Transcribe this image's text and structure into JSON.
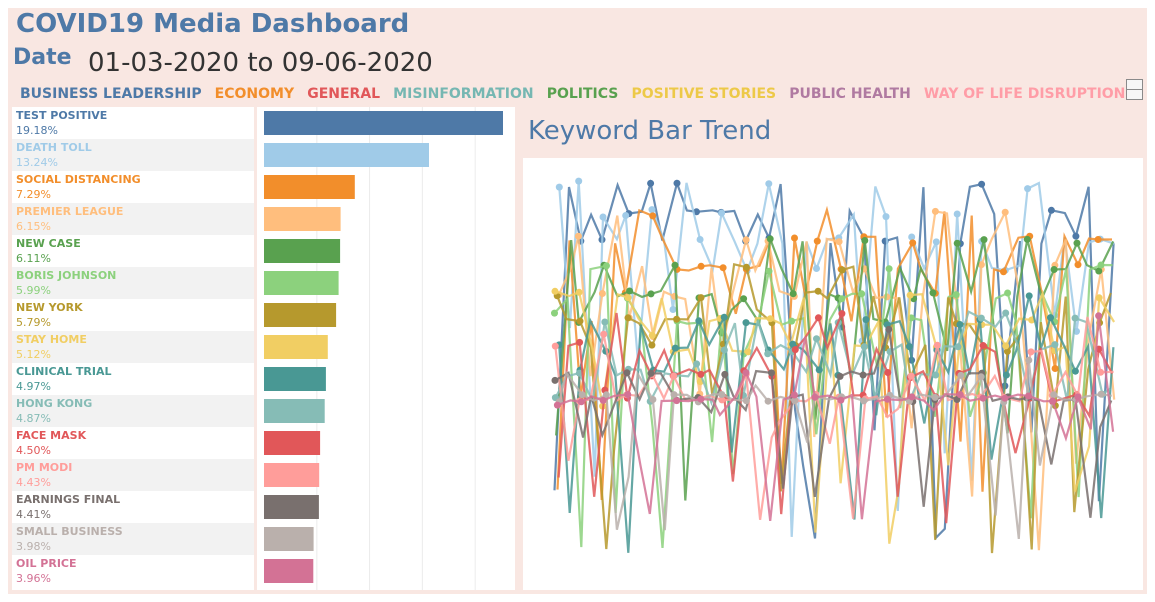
{
  "header": {
    "title": "COVID19 Media Dashboard",
    "date_label": "Date",
    "date_range": "01-03-2020 to 09-06-2020"
  },
  "legend": [
    {
      "label": "BUSINESS LEADERSHIP",
      "color": "#4e79a7"
    },
    {
      "label": "ECONOMY",
      "color": "#f28e2b"
    },
    {
      "label": "GENERAL",
      "color": "#e15759"
    },
    {
      "label": "MISINFORMATION",
      "color": "#76b7b2"
    },
    {
      "label": "POLITICS",
      "color": "#59a14f"
    },
    {
      "label": "POSITIVE STORIES",
      "color": "#edc948"
    },
    {
      "label": "PUBLIC HEALTH",
      "color": "#b07aa1"
    },
    {
      "label": "WAY OF LIFE DISRUPTION",
      "color": "#ff9da7"
    }
  ],
  "trend": {
    "title": "Keyword Bar Trend"
  },
  "chart_data": {
    "type": "bar",
    "orientation": "horizontal",
    "grid": true,
    "categories": [
      "TEST POSITIVE",
      "DEATH TOLL",
      "SOCIAL DISTANCING",
      "PREMIER LEAGUE",
      "NEW CASE",
      "BORIS JOHNSON",
      "NEW YORK",
      "STAY HOME",
      "CLINICAL TRIAL",
      "HONG KONG",
      "FACE MASK",
      "PM MODI",
      "EARNINGS FINAL",
      "SMALL BUSINESS",
      "OIL PRICE"
    ],
    "values": [
      19.18,
      13.24,
      7.29,
      6.15,
      6.11,
      5.99,
      5.79,
      5.12,
      4.97,
      4.87,
      4.5,
      4.43,
      4.41,
      3.98,
      3.96
    ],
    "labels": [
      "19.18%",
      "13.24%",
      "7.29%",
      "6.15%",
      "6.11%",
      "5.99%",
      "5.79%",
      "5.12%",
      "4.97%",
      "4.87%",
      "4.50%",
      "4.43%",
      "4.41%",
      "3.98%",
      "3.96%"
    ],
    "colors": [
      "#4e79a7",
      "#a0cbe8",
      "#f28e2b",
      "#ffbe7d",
      "#59a14f",
      "#8cd17d",
      "#b6992d",
      "#f1ce63",
      "#499894",
      "#86bcb6",
      "#e15759",
      "#ff9d9a",
      "#79706e",
      "#bab0ac",
      "#d37295"
    ],
    "xlim": [
      0,
      20
    ]
  }
}
